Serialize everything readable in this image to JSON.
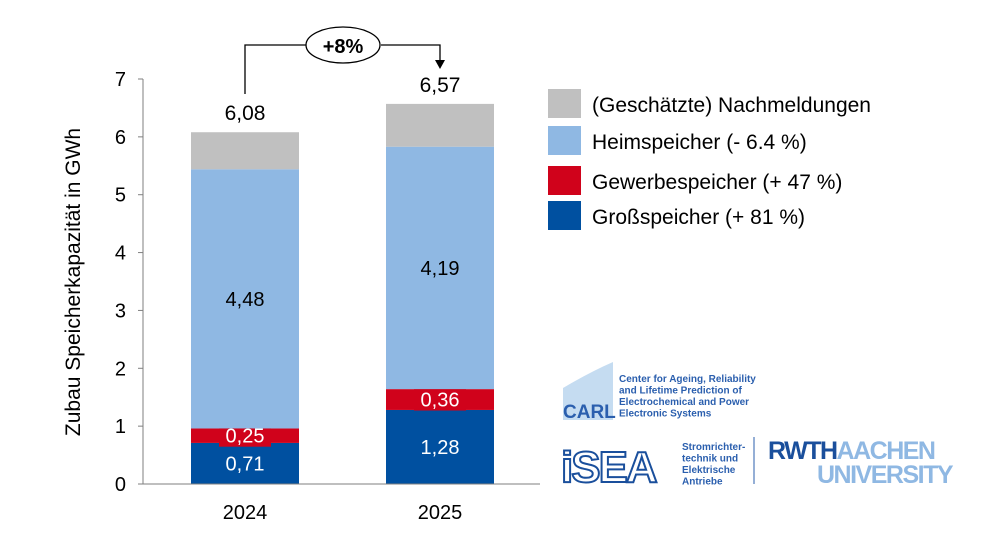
{
  "chart_data": {
    "type": "bar",
    "stacked": true,
    "ylabel": "Zubau Speicherkapazität in GWh",
    "xlabel": "",
    "ylim": [
      0,
      7
    ],
    "yticks": [
      "0",
      "1",
      "2",
      "3",
      "4",
      "5",
      "6",
      "7"
    ],
    "grid": false,
    "legend_position": "right",
    "categories": [
      "2024",
      "2025"
    ],
    "series": [
      {
        "name": "Großspeicher (+ 81 %)",
        "values": [
          0.71,
          1.28
        ],
        "labels": [
          "0,71",
          "1,28"
        ],
        "color": "#0050a0",
        "label_color": "#ffffff"
      },
      {
        "name": "Gewerbespeicher (+ 47 %)",
        "values": [
          0.25,
          0.36
        ],
        "labels": [
          "0,25",
          "0,36"
        ],
        "color": "#d0021b",
        "label_color": "#ffffff"
      },
      {
        "name": "Heimspeicher (- 6.4 %)",
        "values": [
          4.48,
          4.19
        ],
        "labels": [
          "4,48",
          "4,19"
        ],
        "color": "#8fb8e3",
        "label_color": "#000000"
      },
      {
        "name": "(Geschätzte) Nachmeldungen",
        "values": [
          0.64,
          0.74
        ],
        "labels": [
          "",
          ""
        ],
        "color": "#c0c0c0",
        "label_color": "#000000"
      }
    ],
    "totals": [
      6.08,
      6.57
    ],
    "total_labels": [
      "6,08",
      "6,57"
    ],
    "annotation": "+8%"
  },
  "logos": {
    "carl": {
      "name": "CARL",
      "text": [
        "Center for Ageing, Reliability",
        "and Lifetime Prediction of",
        "Electrochemical and Power",
        "Electronic Systems"
      ]
    },
    "isea": {
      "name": "iSEA",
      "text": [
        "Stromrichter-",
        "technik und",
        "Elektrische",
        "Antriebe"
      ]
    },
    "rwth": {
      "part1": "RWTH",
      "part2": "AACHEN",
      "part3": "UNIVERSITY"
    }
  }
}
